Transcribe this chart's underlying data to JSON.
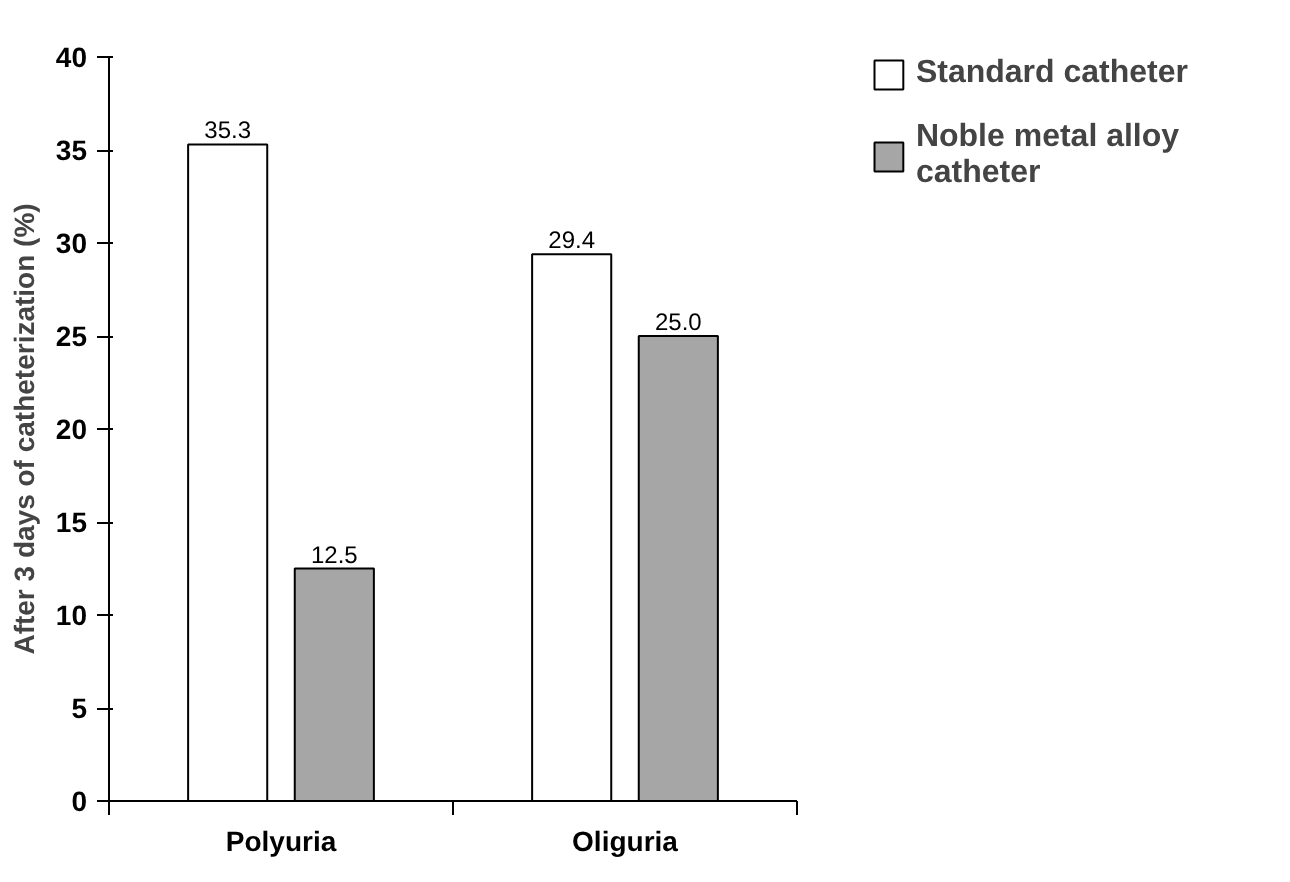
{
  "chart_data": {
    "type": "bar",
    "ylabel": "After 3 days of catheterization (%)",
    "categories": [
      "Polyuria",
      "Oliguria"
    ],
    "series": [
      {
        "name": "Standard catheter",
        "color": "#ffffff",
        "values": [
          35.3,
          29.4
        ]
      },
      {
        "name": "Noble metal alloy catheter",
        "color": "#a6a6a6",
        "values": [
          12.5,
          25.0
        ]
      }
    ],
    "value_labels": [
      [
        "35.3",
        "29.4"
      ],
      [
        "12.5",
        "25.0"
      ]
    ],
    "ylim": [
      0,
      40
    ],
    "yticks": [
      0,
      5,
      10,
      15,
      20,
      25,
      30,
      35,
      40
    ],
    "grid": false,
    "legend": "top right"
  }
}
